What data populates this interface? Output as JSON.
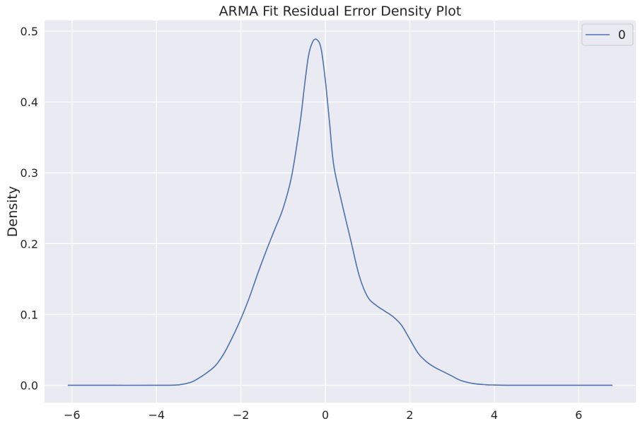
{
  "chart_data": {
    "type": "line",
    "title": "ARMA Fit Residual Error Density Plot",
    "xlabel": "",
    "ylabel": "Density",
    "xlim": [
      -6.65,
      7.35
    ],
    "ylim": [
      -0.0245,
      0.515
    ],
    "xticks": [
      -6,
      -4,
      -2,
      0,
      2,
      4,
      6
    ],
    "xtick_labels": [
      "−6",
      "−4",
      "−2",
      "0",
      "2",
      "4",
      "6"
    ],
    "yticks": [
      0.0,
      0.1,
      0.2,
      0.3,
      0.4,
      0.5
    ],
    "ytick_labels": [
      "0.0",
      "0.1",
      "0.2",
      "0.3",
      "0.4",
      "0.5"
    ],
    "grid": true,
    "legend_position": "top-right",
    "series": [
      {
        "name": "0",
        "color": "#4c72b0",
        "x": [
          -6.1,
          -5.0,
          -4.0,
          -3.5,
          -3.2,
          -3.0,
          -2.8,
          -2.6,
          -2.4,
          -2.2,
          -2.0,
          -1.8,
          -1.6,
          -1.4,
          -1.2,
          -1.0,
          -0.8,
          -0.6,
          -0.5,
          -0.4,
          -0.3,
          -0.2,
          -0.1,
          0.0,
          0.1,
          0.2,
          0.4,
          0.6,
          0.8,
          1.0,
          1.2,
          1.4,
          1.6,
          1.8,
          2.0,
          2.2,
          2.4,
          2.6,
          2.8,
          3.0,
          3.2,
          3.5,
          3.8,
          4.0,
          4.5,
          5.5,
          6.8
        ],
        "y": [
          0.0,
          0.0,
          0.0,
          0.0005,
          0.004,
          0.01,
          0.018,
          0.028,
          0.045,
          0.068,
          0.094,
          0.124,
          0.158,
          0.19,
          0.22,
          0.25,
          0.295,
          0.37,
          0.42,
          0.465,
          0.485,
          0.488,
          0.475,
          0.43,
          0.37,
          0.31,
          0.255,
          0.205,
          0.155,
          0.125,
          0.113,
          0.105,
          0.097,
          0.085,
          0.065,
          0.045,
          0.033,
          0.025,
          0.019,
          0.013,
          0.007,
          0.0025,
          0.0008,
          0.0004,
          0.0,
          0.0,
          0.0
        ]
      }
    ]
  }
}
